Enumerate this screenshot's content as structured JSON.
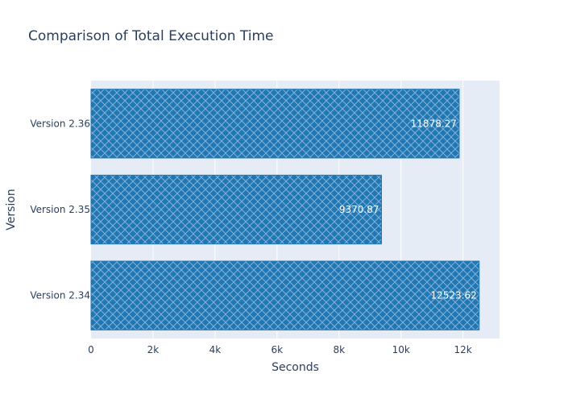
{
  "chart_data": {
    "type": "bar",
    "orientation": "horizontal",
    "title": "Comparison of Total Execution Time",
    "xlabel": "Seconds",
    "ylabel": "Version",
    "categories": [
      "Version 2.34",
      "Version 2.35",
      "Version 2.36"
    ],
    "values": [
      12523.62,
      9370.87,
      11878.27
    ],
    "value_labels": [
      "12523.62",
      "9370.87",
      "11878.27"
    ],
    "xlim": [
      0,
      13180
    ],
    "xticks": [
      0,
      2000,
      4000,
      6000,
      8000,
      10000,
      12000
    ],
    "xtick_labels": [
      "0",
      "2k",
      "4k",
      "6k",
      "8k",
      "10k",
      "12k"
    ],
    "grid": true,
    "bar_color": "#1f77b4",
    "bar_pattern": "crosshatch",
    "plot_background": "#e5ecf6"
  }
}
